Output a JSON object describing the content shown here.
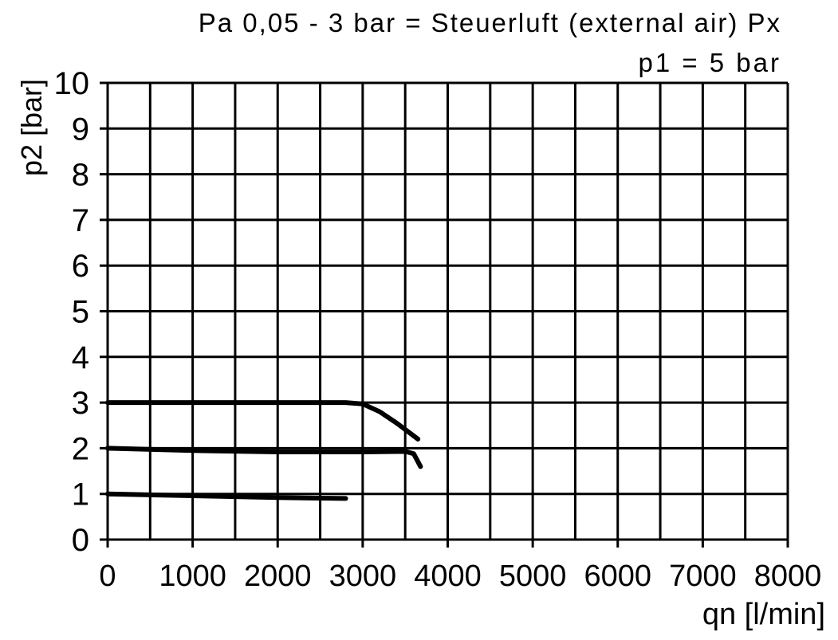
{
  "chart_data": {
    "type": "line",
    "title": "Pa 0,05 - 3 bar = Steuerluft (external air) Px",
    "subtitle": "p1 = 5 bar",
    "y_label": "p2 [bar]",
    "x_label": "qn [l/min]",
    "xlim": [
      0,
      8000
    ],
    "ylim": [
      0,
      10
    ],
    "xticks": [
      0,
      1000,
      2000,
      3000,
      4000,
      5000,
      6000,
      7000,
      8000
    ],
    "minor_xticks": [
      500,
      1500,
      2500,
      3500,
      4500,
      5500,
      6500,
      7500
    ],
    "yticks": [
      0,
      1,
      2,
      3,
      4,
      5,
      6,
      7,
      8,
      9,
      10
    ],
    "grid": true,
    "series": [
      {
        "color": "#000000",
        "x": [
          0,
          1000,
          2000,
          2800,
          3000,
          3200,
          3400,
          3650
        ],
        "values": [
          3,
          3,
          3,
          3,
          2.97,
          2.8,
          2.55,
          2.2
        ]
      },
      {
        "color": "#000000",
        "x": [
          0,
          1000,
          2000,
          3000,
          3500,
          3600,
          3680
        ],
        "values": [
          2.0,
          1.95,
          1.92,
          1.92,
          1.93,
          1.88,
          1.6
        ]
      },
      {
        "color": "#000000",
        "x": [
          0,
          1000,
          2000,
          2800
        ],
        "values": [
          1.0,
          0.96,
          0.92,
          0.9
        ]
      }
    ]
  }
}
